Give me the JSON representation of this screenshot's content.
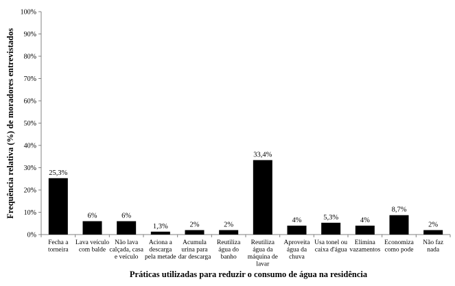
{
  "chart_data": {
    "type": "bar",
    "xlabel": "Práticas utilizadas para reduzir o consumo de água na residência",
    "ylabel": "Frequência relativa (%) de moradores entrevistados",
    "ylim": [
      0,
      100
    ],
    "yticks": [
      "0%",
      "10%",
      "20%",
      "30%",
      "40%",
      "50%",
      "60%",
      "70%",
      "80%",
      "90%",
      "100%"
    ],
    "grid": false,
    "legend": "none",
    "bar_color": "#000000",
    "categories": [
      [
        "Fecha a",
        "torneira"
      ],
      [
        "Lava veículo",
        "com balde"
      ],
      [
        "Não lava",
        "calçada, casa",
        "e veículo"
      ],
      [
        "Aciona a",
        "descarga",
        "pela metade"
      ],
      [
        "Acumula",
        "urina para",
        "dar descarga"
      ],
      [
        "Reutiliza",
        "água do",
        "banho"
      ],
      [
        "Reutiliza",
        "água da",
        "máquina de",
        "lavar"
      ],
      [
        "Aproveita",
        "água da",
        "chuva"
      ],
      [
        "Usa tonel ou",
        "caixa d'água"
      ],
      [
        "Elimina",
        "vazamentos"
      ],
      [
        "Economiza",
        "como pode"
      ],
      [
        "Não faz",
        "nada"
      ]
    ],
    "values": [
      25.3,
      6,
      6,
      1.3,
      2,
      2,
      33.4,
      4,
      5.3,
      4,
      8.7,
      2
    ],
    "labels": [
      "25,3%",
      "6%",
      "6%",
      "1,3%",
      "2%",
      "2%",
      "33,4%",
      "4%",
      "5,3%",
      "4%",
      "8,7%",
      "2%"
    ]
  }
}
